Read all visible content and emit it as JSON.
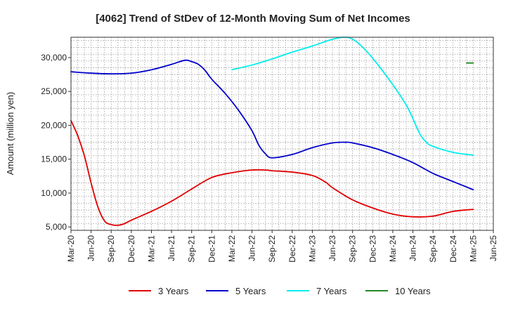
{
  "chart_data": {
    "type": "line",
    "title": "[4062]  Trend of StDev of 12-Month Moving Sum of Net Incomes",
    "xlabel": "",
    "ylabel": "Amount (million yen)",
    "ylim": [
      4500,
      33000
    ],
    "y_ticks": [
      5000,
      10000,
      15000,
      20000,
      25000,
      30000
    ],
    "y_tick_labels": [
      "5,000",
      "10,000",
      "15,000",
      "20,000",
      "25,000",
      "30,000"
    ],
    "x_tick_labels": [
      "Mar-20",
      "Jun-20",
      "Sep-20",
      "Dec-20",
      "Mar-21",
      "Jun-21",
      "Sep-21",
      "Dec-21",
      "Mar-22",
      "Jun-22",
      "Sep-22",
      "Dec-22",
      "Mar-23",
      "Jun-23",
      "Sep-23",
      "Dec-23",
      "Mar-24",
      "Jun-24",
      "Sep-24",
      "Dec-24",
      "Mar-25",
      "Jun-25"
    ],
    "grid": true,
    "legend_position": "bottom",
    "series": [
      {
        "name": "3 Years",
        "color": "#e00000",
        "points": [
          [
            "Mar-20",
            20700
          ],
          [
            "Apr-20",
            18500
          ],
          [
            "May-20",
            15500
          ],
          [
            "Jun-20",
            11500
          ],
          [
            "Jul-20",
            8000
          ],
          [
            "Aug-20",
            5900
          ],
          [
            "Sep-20",
            5350
          ],
          [
            "Oct-20",
            5250
          ],
          [
            "Nov-20",
            5500
          ],
          [
            "Dec-20",
            6000
          ],
          [
            "Mar-21",
            7300
          ],
          [
            "Jun-21",
            8800
          ],
          [
            "Sep-21",
            10600
          ],
          [
            "Dec-21",
            12300
          ],
          [
            "Mar-22",
            13000
          ],
          [
            "Jun-22",
            13400
          ],
          [
            "Aug-22",
            13400
          ],
          [
            "Sep-22",
            13300
          ],
          [
            "Dec-22",
            13100
          ],
          [
            "Mar-23",
            12600
          ],
          [
            "May-23",
            11600
          ],
          [
            "Jun-23",
            10800
          ],
          [
            "Sep-23",
            9000
          ],
          [
            "Dec-23",
            7800
          ],
          [
            "Mar-24",
            6900
          ],
          [
            "Jun-24",
            6500
          ],
          [
            "Sep-24",
            6600
          ],
          [
            "Dec-24",
            7300
          ],
          [
            "Mar-25",
            7600
          ]
        ]
      },
      {
        "name": "5 Years",
        "color": "#0000cc",
        "points": [
          [
            "Mar-20",
            27900
          ],
          [
            "Jun-20",
            27700
          ],
          [
            "Sep-20",
            27600
          ],
          [
            "Dec-20",
            27700
          ],
          [
            "Mar-21",
            28200
          ],
          [
            "Jun-21",
            29000
          ],
          [
            "Aug-21",
            29600
          ],
          [
            "Sep-21",
            29400
          ],
          [
            "Oct-21",
            29000
          ],
          [
            "Nov-21",
            28100
          ],
          [
            "Dec-21",
            26800
          ],
          [
            "Feb-22",
            24700
          ],
          [
            "Apr-22",
            22200
          ],
          [
            "Jun-22",
            19200
          ],
          [
            "Jul-22",
            17100
          ],
          [
            "Aug-22",
            15800
          ],
          [
            "Sep-22",
            15200
          ],
          [
            "Dec-22",
            15700
          ],
          [
            "Mar-23",
            16700
          ],
          [
            "Jun-23",
            17400
          ],
          [
            "Aug-23",
            17500
          ],
          [
            "Sep-23",
            17400
          ],
          [
            "Dec-23",
            16700
          ],
          [
            "Mar-24",
            15700
          ],
          [
            "Jun-24",
            14500
          ],
          [
            "Sep-24",
            12900
          ],
          [
            "Dec-24",
            11700
          ],
          [
            "Mar-25",
            10500
          ]
        ]
      },
      {
        "name": "7 Years",
        "color": "#00eeee",
        "points": [
          [
            "Mar-22",
            28200
          ],
          [
            "Jun-22",
            28900
          ],
          [
            "Sep-22",
            29800
          ],
          [
            "Dec-22",
            30800
          ],
          [
            "Mar-23",
            31700
          ],
          [
            "Jun-23",
            32700
          ],
          [
            "Aug-23",
            33000
          ],
          [
            "Sep-23",
            32700
          ],
          [
            "Oct-23",
            32000
          ],
          [
            "Dec-23",
            29900
          ],
          [
            "Mar-24",
            26000
          ],
          [
            "May-24",
            23000
          ],
          [
            "Jun-24",
            21000
          ],
          [
            "Jul-24",
            18800
          ],
          [
            "Aug-24",
            17500
          ],
          [
            "Sep-24",
            16900
          ],
          [
            "Dec-24",
            16000
          ],
          [
            "Mar-25",
            15600
          ]
        ]
      },
      {
        "name": "10 Years",
        "color": "#228822",
        "points": [
          [
            "Feb-25",
            29200
          ],
          [
            "Mar-25",
            29200
          ]
        ]
      }
    ]
  }
}
